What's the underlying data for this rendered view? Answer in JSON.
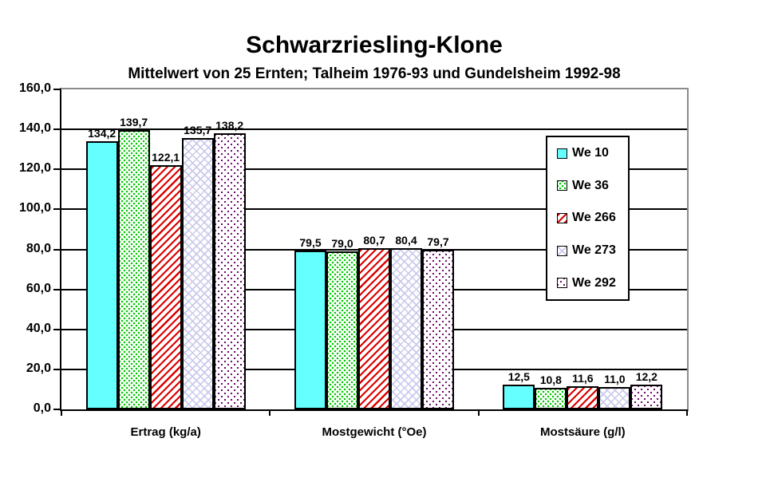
{
  "chart_data": {
    "type": "bar",
    "title": "Schwarzriesling-Klone",
    "subtitle": "Mittelwert von 25 Ernten; Talheim 1976-93 und Gundelsheim 1992-98",
    "categories": [
      "Ertrag (kg/a)",
      "Mostgewicht (°Oe)",
      "Mostsäure (g/l)"
    ],
    "series": [
      {
        "name": "We 10",
        "values": [
          134.2,
          79.5,
          12.5
        ],
        "value_labels": [
          "134,2",
          "79,5",
          "12,5"
        ],
        "pattern": "solid",
        "color": "#66FFFF"
      },
      {
        "name": "We 36",
        "values": [
          139.7,
          79.0,
          10.8
        ],
        "value_labels": [
          "139,7",
          "79,0",
          "10,8"
        ],
        "pattern": "dots",
        "color": "#00C800"
      },
      {
        "name": "We 266",
        "values": [
          122.1,
          80.7,
          11.6
        ],
        "value_labels": [
          "122,1",
          "80,7",
          "11,6"
        ],
        "pattern": "diagonal-up",
        "color": "#DD0000"
      },
      {
        "name": "We 273",
        "values": [
          135.7,
          80.4,
          11.0
        ],
        "value_labels": [
          "135,7",
          "80,4",
          "11,0"
        ],
        "pattern": "crosshatch",
        "color": "#C9C9EC"
      },
      {
        "name": "We 292",
        "values": [
          138.2,
          79.7,
          12.2
        ],
        "value_labels": [
          "138,2",
          "79,7",
          "12,2"
        ],
        "pattern": "dotted-diamond",
        "color": "#660066"
      }
    ],
    "y_axis": {
      "min": 0,
      "max": 160,
      "step": 20,
      "tick_labels": [
        "0,0",
        "20,0",
        "40,0",
        "60,0",
        "80,0",
        "100,0",
        "120,0",
        "140,0",
        "160,0"
      ]
    },
    "grid": true,
    "legend_position": "inside-right",
    "colors": {
      "background": "#FFFFFF",
      "gridline": "#000000",
      "axis": "#000000",
      "plot_border_shadow": "#8C8C8C",
      "text": "#000000"
    }
  }
}
